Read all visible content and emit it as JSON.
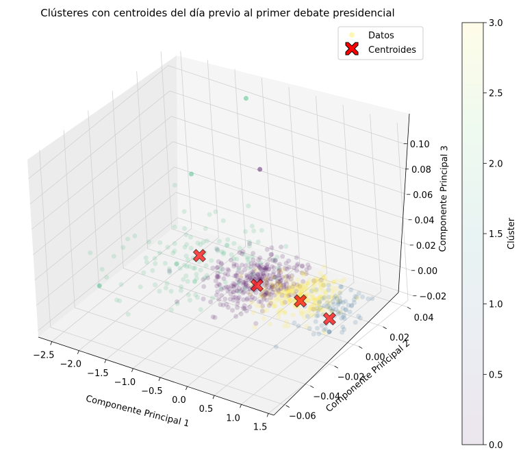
{
  "chart_data": {
    "type": "scatter",
    "projection": "3d",
    "title": "Clústeres con centroides del día previo al primer debate presidencial",
    "xlabel": "Componente Principal 1",
    "ylabel": "Componente Principal 2",
    "zlabel": "Componente Principal 3",
    "xlim": [
      -2.75,
      1.6
    ],
    "ylim": [
      -0.07,
      0.045
    ],
    "zlim": [
      -0.025,
      0.115
    ],
    "xticks": [
      -2.5,
      -2.0,
      -1.5,
      -1.0,
      -0.5,
      0.0,
      0.5,
      1.0,
      1.5
    ],
    "yticks": [
      -0.06,
      -0.04,
      -0.02,
      0.0,
      0.02,
      0.04
    ],
    "zticks": [
      -0.02,
      0.0,
      0.02,
      0.04,
      0.06,
      0.08,
      0.1
    ],
    "xtick_labels": [
      "−2.5",
      "−2.0",
      "−1.5",
      "−1.0",
      "−0.5",
      "0.0",
      "0.5",
      "1.0",
      "1.5"
    ],
    "ytick_labels": [
      "−0.06",
      "−0.04",
      "−0.02",
      "0.00",
      "0.02",
      "0.04"
    ],
    "ztick_labels": [
      "−0.02",
      "0.00",
      "0.02",
      "0.04",
      "0.06",
      "0.08",
      "0.10"
    ],
    "grid": true,
    "legend": {
      "placement": "top-right",
      "entries": [
        {
          "label": "Datos",
          "marker": "circle",
          "color": "#fde725"
        },
        {
          "label": "Centroides",
          "marker": "X",
          "color": "#ff0000"
        }
      ]
    },
    "colorbar": {
      "label": "Clúster",
      "colormap": "viridis",
      "range": [
        0.0,
        3.0
      ],
      "ticks": [
        0.0,
        0.5,
        1.0,
        1.5,
        2.0,
        2.5,
        3.0
      ],
      "tick_labels": [
        "0.0",
        "0.5",
        "1.0",
        "1.5",
        "2.0",
        "2.5",
        "3.0"
      ]
    },
    "clusters": [
      {
        "cluster": 0,
        "color": "#440154",
        "center": [
          -0.25,
          0.0,
          0.0
        ],
        "spread": [
          0.35,
          0.012,
          0.004
        ]
      },
      {
        "cluster": 1,
        "color": "#31688e",
        "center": [
          1.15,
          0.0,
          0.0
        ],
        "spread": [
          0.25,
          0.01,
          0.003
        ]
      },
      {
        "cluster": 2,
        "color": "#35b779",
        "center": [
          -1.3,
          0.0,
          0.002
        ],
        "spread": [
          0.6,
          0.02,
          0.01
        ]
      },
      {
        "cluster": 3,
        "color": "#fde725",
        "center": [
          0.55,
          0.0,
          0.0
        ],
        "spread": [
          0.3,
          0.01,
          0.003
        ]
      }
    ],
    "centroids": [
      {
        "cluster": 2,
        "x": -1.42,
        "y": 0.005,
        "z": 0.0
      },
      {
        "cluster": 0,
        "x": -0.25,
        "y": 0.0,
        "z": -0.003
      },
      {
        "cluster": 3,
        "x": 0.55,
        "y": 0.0,
        "z": -0.004
      },
      {
        "cluster": 1,
        "x": 1.2,
        "y": -0.005,
        "z": -0.005
      }
    ],
    "outliers": [
      {
        "cluster": 2,
        "x": -1.2,
        "y": 0.04,
        "z": 0.1
      },
      {
        "cluster": 0,
        "x": -0.3,
        "y": 0.01,
        "z": 0.08
      },
      {
        "cluster": 2,
        "x": -2.2,
        "y": 0.035,
        "z": 0.03
      },
      {
        "cluster": 1,
        "x": 1.3,
        "y": -0.01,
        "z": -0.01
      },
      {
        "cluster": 2,
        "x": -2.5,
        "y": -0.03,
        "z": -0.012
      }
    ]
  }
}
